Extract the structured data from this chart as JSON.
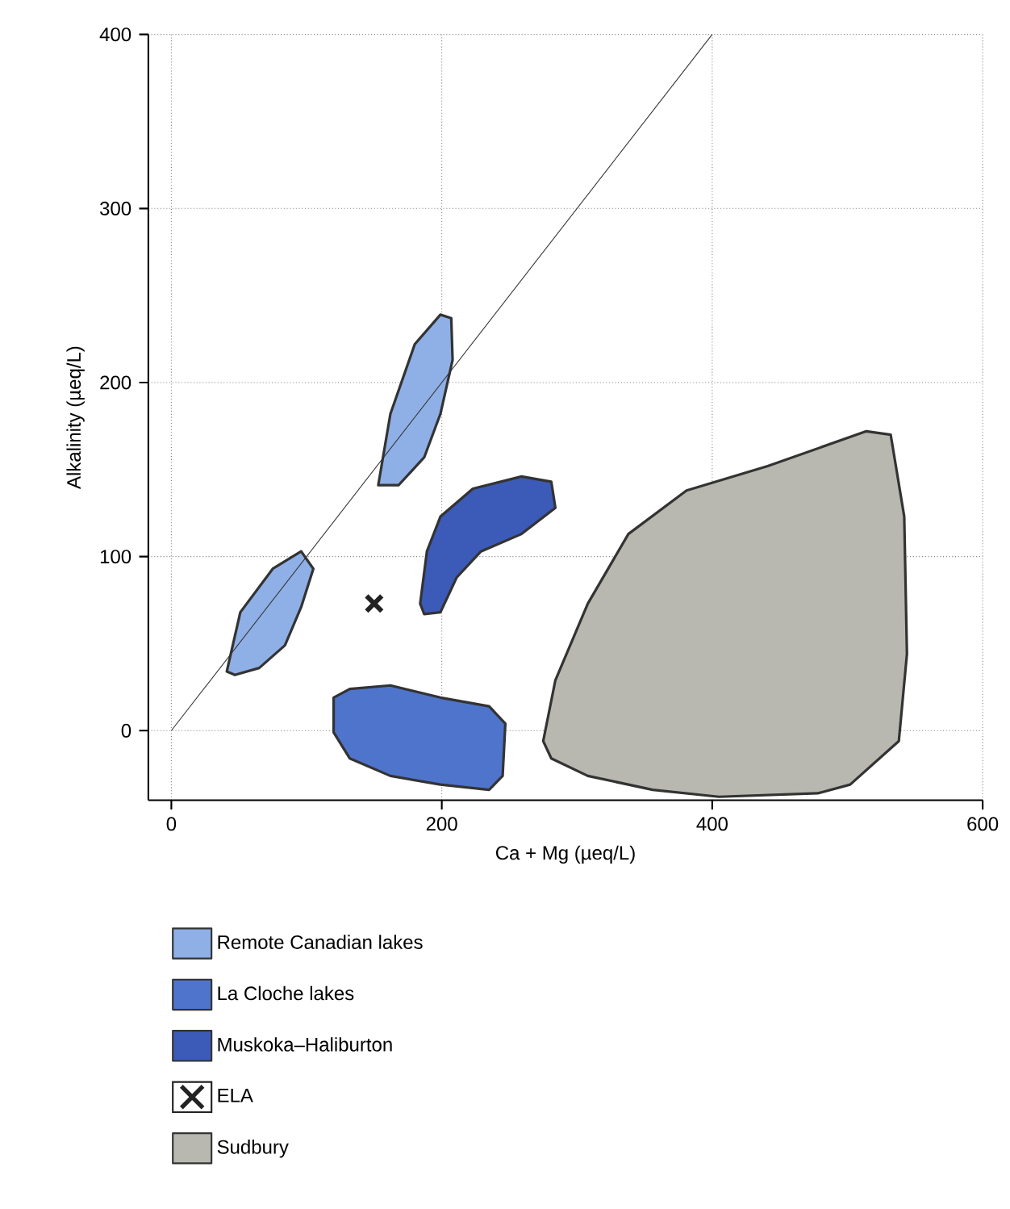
{
  "chart_data": {
    "type": "area",
    "xlabel": "Ca + Mg (µeq/L)",
    "ylabel": "Alkalinity (µeq/L)",
    "xlim": [
      -17,
      600
    ],
    "ylim": [
      -40,
      400
    ],
    "xticks": [
      0,
      200,
      400,
      600
    ],
    "yticks": [
      0,
      100,
      200,
      300,
      400
    ],
    "grid": true,
    "legend": "bottom",
    "series": [
      {
        "name": "Remote Canadian lakes",
        "color": "#8fb0e6",
        "x": [
          41,
          51,
          75,
          96,
          105,
          96,
          84,
          65,
          47
        ],
        "values": [
          34,
          68,
          93,
          103,
          93,
          71,
          49,
          36,
          32
        ]
      },
      {
        "color": "#8fb0e6",
        "x": [
          153,
          162,
          180,
          199,
          207,
          208,
          199,
          187,
          168
        ],
        "values": [
          141,
          182,
          222,
          239,
          237,
          213,
          182,
          157,
          141
        ]
      },
      {
        "name": "La Cloche lakes",
        "color": "#4f74cc",
        "x": [
          120,
          132,
          162,
          199,
          235,
          247,
          245,
          235,
          199,
          162,
          132,
          120
        ],
        "values": [
          19,
          24,
          26,
          19,
          14,
          4,
          -26,
          -34,
          -31,
          -26,
          -16,
          -1
        ]
      },
      {
        "name": "Muskoka–Haliburton",
        "color": "#3c5ab8",
        "x": [
          184,
          189,
          199,
          223,
          259,
          281,
          284,
          259,
          229,
          211,
          199,
          187
        ],
        "values": [
          73,
          103,
          123,
          139,
          146,
          143,
          128,
          113,
          103,
          88,
          68,
          67
        ]
      },
      {
        "name": "ELA",
        "type": "scatter",
        "marker": "cross",
        "color": "#222222",
        "x": [
          150
        ],
        "values": [
          73
        ]
      },
      {
        "name": "Sudbury",
        "color": "#b8b8b0",
        "x": [
          275,
          284,
          308,
          338,
          381,
          441,
          514,
          532,
          542,
          544,
          538,
          502,
          478,
          405,
          356,
          308,
          281
        ],
        "values": [
          -6,
          29,
          73,
          113,
          138,
          152,
          172,
          170,
          123,
          44,
          -6,
          -31,
          -36,
          -38,
          -34,
          -26,
          -16
        ]
      },
      {
        "type": "line",
        "color": "#333333",
        "x": [
          0,
          400
        ],
        "values": [
          0,
          400
        ]
      }
    ]
  }
}
